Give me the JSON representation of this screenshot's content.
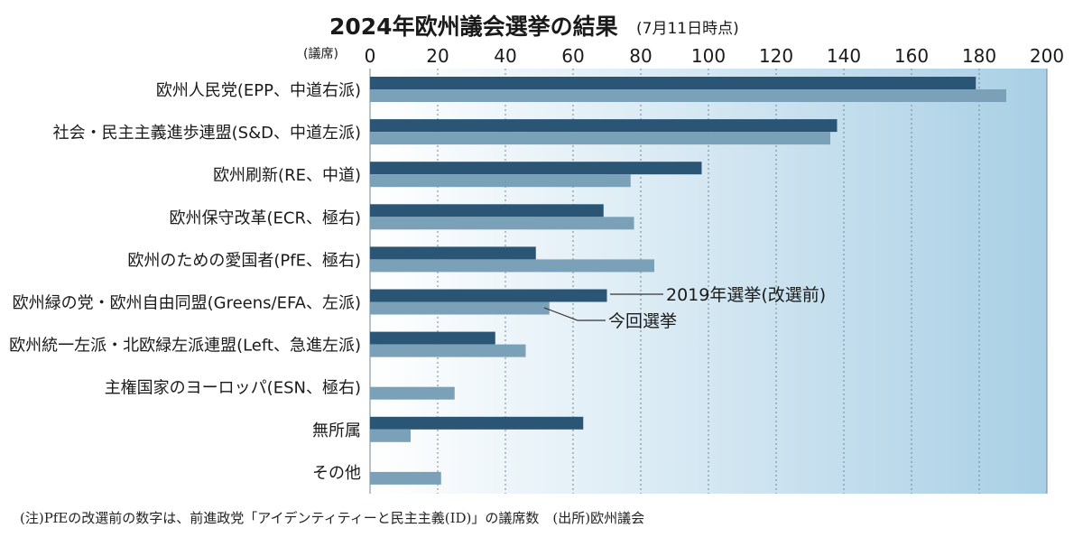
{
  "chart_data": {
    "type": "bar",
    "orientation": "horizontal",
    "title": "2024年欧州議会選挙の結果",
    "subtitle": "(7月11日時点)",
    "unit_label": "(議席)",
    "xlim": [
      0,
      200
    ],
    "ticks": [
      0,
      20,
      40,
      60,
      80,
      100,
      120,
      140,
      160,
      180,
      200
    ],
    "grid": true,
    "categories": [
      "欧州人民党(EPP、中道右派)",
      "社会・民主主義進歩連盟(S&D、中道左派)",
      "欧州刷新(RE、中道)",
      "欧州保守改革(ECR、極右)",
      "欧州のための愛国者(PfE、極右)",
      "欧州緑の党・欧州自由同盟(Greens/EFA、左派)",
      "欧州統一左派・北欧緑左派連盟(Left、急進左派)",
      "主権国家のヨーロッパ(ESN、極右)",
      "無所属",
      "その他"
    ],
    "series": [
      {
        "name": "2019年選挙(改選前)",
        "color": "#2a5575",
        "values": [
          179,
          138,
          98,
          69,
          49,
          70,
          37,
          null,
          63,
          null
        ]
      },
      {
        "name": "今回選挙",
        "color": "#7aa1b8",
        "values": [
          188,
          136,
          77,
          78,
          84,
          53,
          46,
          25,
          12,
          21
        ]
      }
    ],
    "note": "(注)PfEの改選前の数字は、前進政党「アイデンティティーと民主主義(ID)」の議席数　(出所)欧州議会"
  }
}
